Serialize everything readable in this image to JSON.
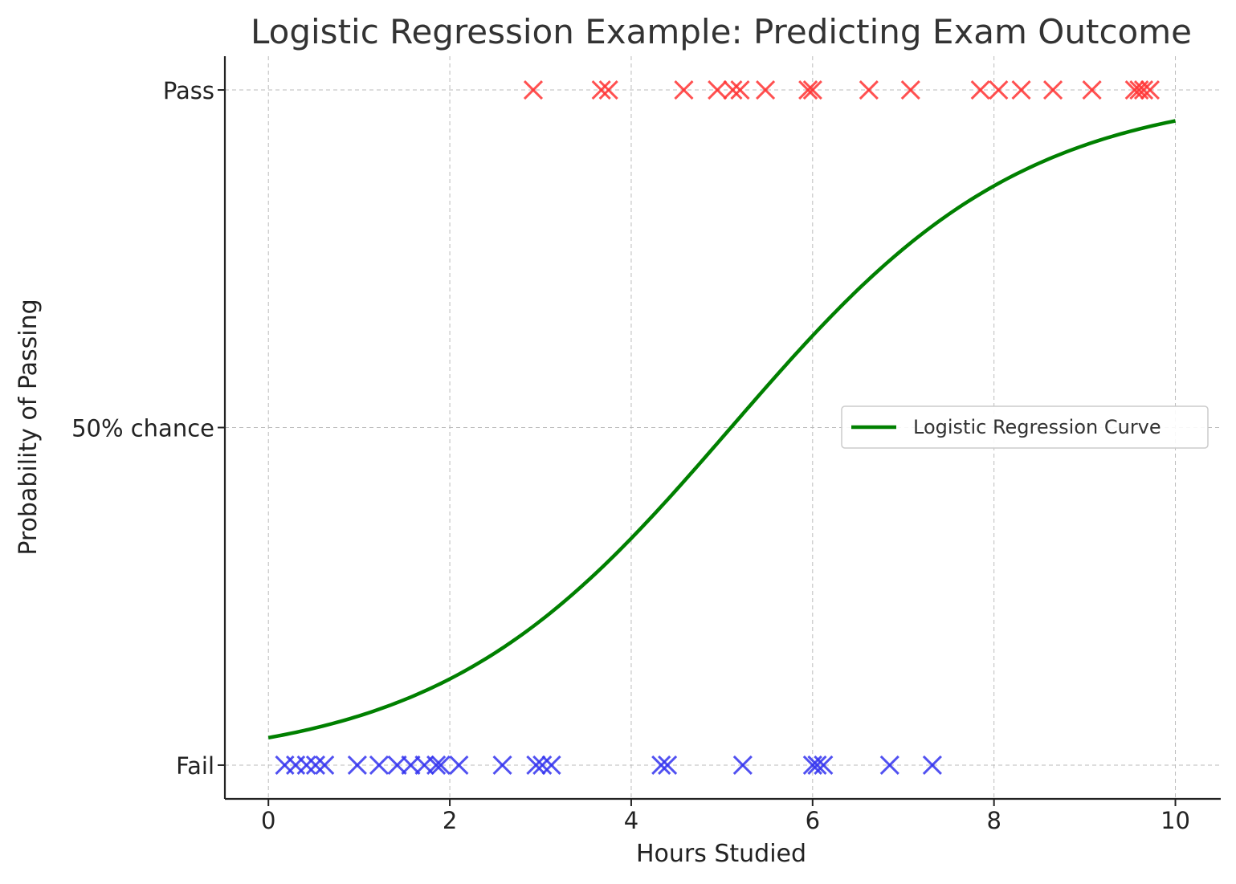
{
  "chart_data": {
    "type": "scatter",
    "title": "Logistic Regression Example: Predicting Exam Outcome",
    "xlabel": "Hours Studied",
    "ylabel": "Probability of Passing",
    "xlim": [
      -0.48,
      10.5
    ],
    "ylim": [
      -0.05,
      1.05
    ],
    "x_ticks": [
      0,
      2,
      4,
      6,
      8,
      10
    ],
    "y_ticks": [
      {
        "value": 0,
        "label": "Fail"
      },
      {
        "value": 0.5,
        "label": "50% chance"
      },
      {
        "value": 1,
        "label": "Pass"
      }
    ],
    "grid": true,
    "legend_position": "center-right",
    "series": [
      {
        "kind": "line",
        "name": "Logistic Regression Curve",
        "color": "#008000",
        "model": {
          "x0": 5.1,
          "k": 0.62
        },
        "x_range": [
          0,
          10
        ]
      },
      {
        "kind": "scatter",
        "marker": "x",
        "color": "#ff3333",
        "y": 1,
        "x": [
          2.92,
          3.67,
          3.75,
          4.58,
          4.95,
          5.12,
          5.2,
          5.48,
          5.95,
          6.0,
          6.62,
          7.08,
          7.85,
          8.05,
          8.3,
          8.65,
          9.08,
          9.55,
          9.6,
          9.65,
          9.72
        ]
      },
      {
        "kind": "scatter",
        "marker": "x",
        "color": "#3333ee",
        "y": 0,
        "x": [
          0.18,
          0.3,
          0.42,
          0.52,
          0.62,
          0.98,
          1.22,
          1.42,
          1.57,
          1.72,
          1.85,
          1.9,
          2.1,
          2.58,
          2.95,
          3.02,
          3.12,
          4.33,
          4.4,
          5.23,
          6.0,
          6.05,
          6.12,
          6.85,
          7.32
        ]
      }
    ]
  }
}
